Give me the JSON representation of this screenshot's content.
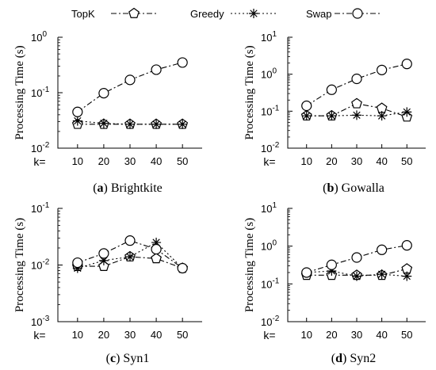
{
  "legend": [
    {
      "name": "TopK",
      "marker": "pentagon",
      "dash": "dashdot"
    },
    {
      "name": "Greedy",
      "marker": "asterisk",
      "dash": "dotted"
    },
    {
      "name": "Swap",
      "marker": "circle",
      "dash": "dashdot"
    }
  ],
  "chart_data": [
    {
      "type": "line",
      "caption_letter": "a",
      "caption_name": "Brightkite",
      "x_prefix": "k=",
      "x": [
        10,
        20,
        30,
        40,
        50
      ],
      "ylabel": "Processing Time (s)",
      "yscale": "log",
      "ylim_exp": [
        -2,
        0
      ],
      "series": [
        {
          "name": "TopK",
          "values": [
            0.027,
            0.027,
            0.027,
            0.027,
            0.027
          ]
        },
        {
          "name": "Greedy",
          "values": [
            0.031,
            0.028,
            0.027,
            0.027,
            0.027
          ]
        },
        {
          "name": "Swap",
          "values": [
            0.045,
            0.098,
            0.17,
            0.26,
            0.35
          ]
        }
      ]
    },
    {
      "type": "line",
      "caption_letter": "b",
      "caption_name": "Gowalla",
      "x_prefix": "k=",
      "x": [
        10,
        20,
        30,
        40,
        50
      ],
      "ylabel": "Processing Time (s)",
      "yscale": "log",
      "ylim_exp": [
        -2,
        1
      ],
      "series": [
        {
          "name": "TopK",
          "values": [
            0.075,
            0.075,
            0.16,
            0.12,
            0.07
          ]
        },
        {
          "name": "Greedy",
          "values": [
            0.075,
            0.075,
            0.078,
            0.075,
            0.095
          ]
        },
        {
          "name": "Swap",
          "values": [
            0.14,
            0.38,
            0.75,
            1.3,
            1.9
          ]
        }
      ]
    },
    {
      "type": "line",
      "caption_letter": "c",
      "caption_name": "Syn1",
      "x_prefix": "k=",
      "x": [
        10,
        20,
        30,
        40,
        50
      ],
      "ylabel": "Processing Time (s)",
      "yscale": "log",
      "ylim_exp": [
        -3,
        -1
      ],
      "series": [
        {
          "name": "TopK",
          "values": [
            0.0095,
            0.0095,
            0.014,
            0.013,
            0.0088
          ]
        },
        {
          "name": "Greedy",
          "values": [
            0.0088,
            0.012,
            0.014,
            0.025,
            0.0088
          ]
        },
        {
          "name": "Swap",
          "values": [
            0.011,
            0.016,
            0.027,
            0.019,
            0.0088
          ]
        }
      ]
    },
    {
      "type": "line",
      "caption_letter": "d",
      "caption_name": "Syn2",
      "x_prefix": "k=",
      "x": [
        10,
        20,
        30,
        40,
        50
      ],
      "ylabel": "Processing Time (s)",
      "yscale": "log",
      "ylim_exp": [
        -2,
        1
      ],
      "series": [
        {
          "name": "TopK",
          "values": [
            0.17,
            0.17,
            0.17,
            0.17,
            0.25
          ]
        },
        {
          "name": "Greedy",
          "values": [
            0.2,
            0.22,
            0.16,
            0.18,
            0.16
          ]
        },
        {
          "name": "Swap",
          "values": [
            0.2,
            0.32,
            0.5,
            0.8,
            1.05
          ]
        }
      ]
    }
  ]
}
